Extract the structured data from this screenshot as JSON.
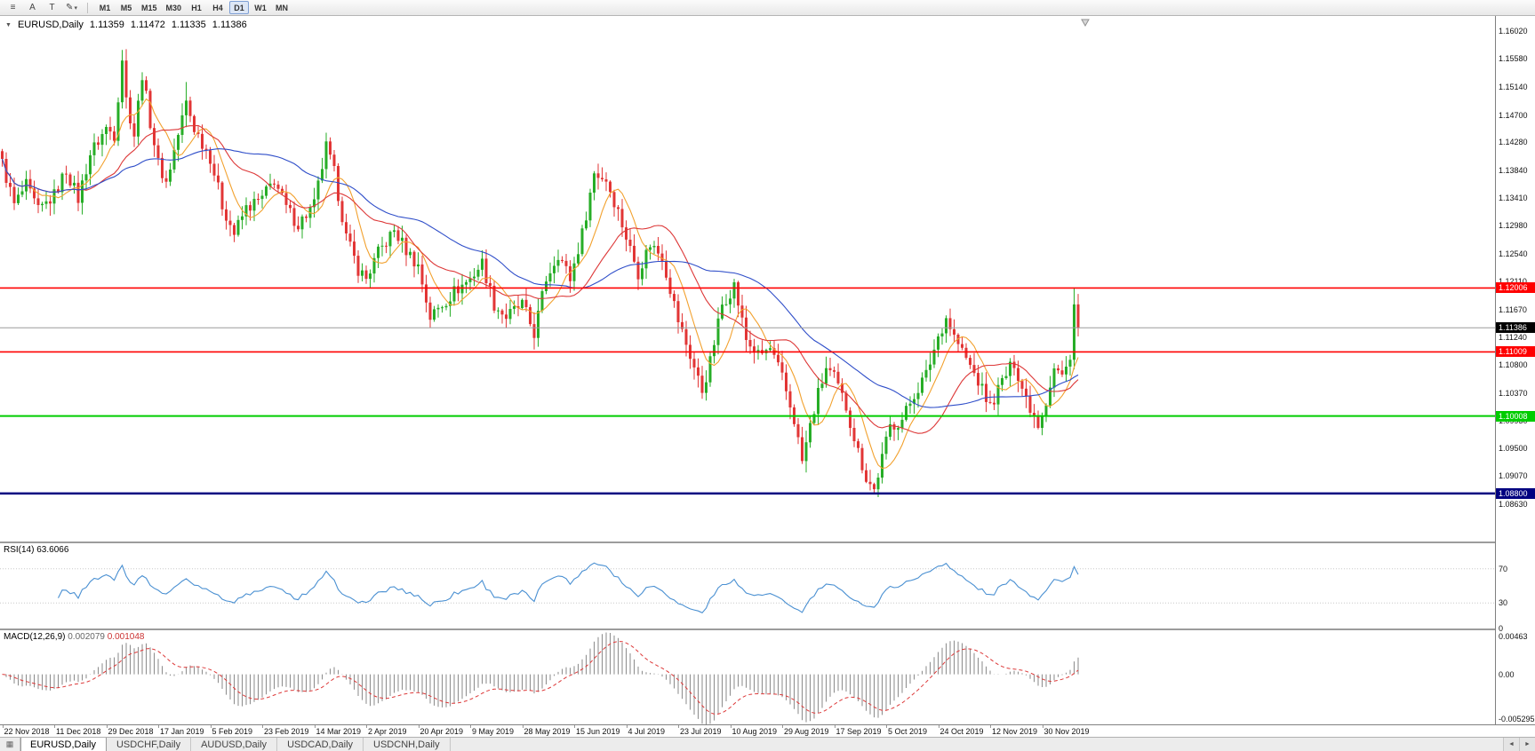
{
  "window": {
    "bg": "#ffffff"
  },
  "toolbar": {
    "icons": {
      "chart_menu": "≡",
      "cursor_tool": "A",
      "crosshair_tool": "T",
      "draw_tools": "✎",
      "caret_down": "▾",
      "title_marker": "▼",
      "scroll_left": "◄",
      "scroll_right": "►",
      "tab_grid": "▦"
    },
    "timeframes": [
      "M1",
      "M5",
      "M15",
      "M30",
      "H1",
      "H4",
      "D1",
      "W1",
      "MN"
    ],
    "active_timeframe": "D1"
  },
  "chart": {
    "title": {
      "symbol_label": "EURUSD,Daily",
      "open": "1.11359",
      "high": "1.11472",
      "low": "1.11335",
      "close": "1.11386"
    }
  },
  "price_axis": {
    "ticks": [
      "1.16020",
      "1.15580",
      "1.15140",
      "1.14700",
      "1.14280",
      "1.13840",
      "1.13410",
      "1.12980",
      "1.12540",
      "1.12110",
      "1.11670",
      "1.11240",
      "1.10800",
      "1.10370",
      "1.09930",
      "1.09500",
      "1.09070",
      "1.08630"
    ],
    "current_price": "1.11386"
  },
  "indicators": {
    "rsi": {
      "name": "RSI(14)",
      "value": "63.6066",
      "levels": [
        "70",
        "30",
        "0"
      ]
    },
    "macd": {
      "name": "MACD(12,26,9)",
      "main_value": "0.002079",
      "signal_value": "0.001048",
      "axis": [
        "0.00463",
        "0.00",
        "-0.005295"
      ]
    }
  },
  "date_axis": [
    "22 Nov 2018",
    "11 Dec 2018",
    "29 Dec 2018",
    "17 Jan 2019",
    "5 Feb 2019",
    "23 Feb 2019",
    "14 Mar 2019",
    "2 Apr 2019",
    "20 Apr 2019",
    "9 May 2019",
    "28 May 2019",
    "15 Jun 2019",
    "4 Jul 2019",
    "23 Jul 2019",
    "10 Aug 2019",
    "29 Aug 2019",
    "17 Sep 2019",
    "5 Oct 2019",
    "24 Oct 2019",
    "12 Nov 2019",
    "30 Nov 2019"
  ],
  "tabs": [
    {
      "label": "EURUSD,Daily",
      "active": true
    },
    {
      "label": "USDCHF,Daily",
      "active": false
    },
    {
      "label": "AUDUSD,Daily",
      "active": false
    },
    {
      "label": "USDCAD,Daily",
      "active": false
    },
    {
      "label": "USDCNH,Daily",
      "active": false
    }
  ],
  "chart_data": {
    "type": "candlestick",
    "symbol": "EURUSD",
    "period": "Daily",
    "ohlc_current": {
      "open": 1.11359,
      "high": 1.11472,
      "low": 1.11335,
      "close": 1.11386
    },
    "num_candles": 270,
    "x_step": 4.5,
    "y_range": [
      1.0805,
      1.1625
    ],
    "last_close": 1.11386,
    "current_price": 1.11386,
    "colors": {
      "up": "#27ad27",
      "down": "#e23535",
      "bid_line": "#9c9c9c",
      "rsi": "#4a90d2",
      "macd_hist": "#8a8a8a",
      "macd_signal": "#dd3838"
    },
    "moving_averages": [
      {
        "period": 8,
        "color": "#f2a12e"
      },
      {
        "period": 21,
        "color": "#dd3838"
      },
      {
        "period": 45,
        "color": "#2f4ec9"
      }
    ],
    "hlines": [
      {
        "price": 1.12006,
        "label": "1.12006",
        "color": "#ff0000",
        "width": 1.6
      },
      {
        "price": 1.11009,
        "label": "1.11009",
        "color": "#ff0000",
        "width": 1.6
      },
      {
        "price": 1.10008,
        "label": "1.10008",
        "color": "#00cc00",
        "width": 2
      },
      {
        "price": 1.088,
        "label": "1.08800",
        "color": "#000080",
        "width": 2.5
      }
    ],
    "rsi": {
      "period": 14,
      "value": 63.6066,
      "levels": [
        70,
        30
      ]
    },
    "macd": {
      "fast": 12,
      "slow": 26,
      "signal": 9,
      "range": [
        -0.0054,
        0.00475
      ],
      "main": 0.002079,
      "signal_value": 0.001048
    },
    "anchors": [
      [
        0,
        1.1395
      ],
      [
        3,
        1.133
      ],
      [
        6,
        1.136
      ],
      [
        9,
        1.132
      ],
      [
        13,
        1.1345
      ],
      [
        16,
        1.1385
      ],
      [
        19,
        1.134
      ],
      [
        22,
        1.141
      ],
      [
        26,
        1.145
      ],
      [
        28,
        1.144
      ],
      [
        30,
        1.156
      ],
      [
        31,
        1.1495
      ],
      [
        33,
        1.144
      ],
      [
        35,
        1.1535
      ],
      [
        37,
        1.146
      ],
      [
        39,
        1.1395
      ],
      [
        41,
        1.1365
      ],
      [
        44,
        1.144
      ],
      [
        46,
        1.149
      ],
      [
        48,
        1.145
      ],
      [
        52,
        1.1405
      ],
      [
        55,
        1.133
      ],
      [
        58,
        1.1285
      ],
      [
        61,
        1.1325
      ],
      [
        65,
        1.134
      ],
      [
        68,
        1.137
      ],
      [
        71,
        1.1325
      ],
      [
        74,
        1.13
      ],
      [
        78,
        1.133
      ],
      [
        81,
        1.142
      ],
      [
        83,
        1.138
      ],
      [
        86,
        1.128
      ],
      [
        89,
        1.123
      ],
      [
        91,
        1.1215
      ],
      [
        94,
        1.1255
      ],
      [
        98,
        1.129
      ],
      [
        101,
        1.126
      ],
      [
        104,
        1.1235
      ],
      [
        107,
        1.1155
      ],
      [
        110,
        1.1175
      ],
      [
        113,
        1.1195
      ],
      [
        117,
        1.1215
      ],
      [
        120,
        1.124
      ],
      [
        123,
        1.1175
      ],
      [
        126,
        1.1155
      ],
      [
        130,
        1.1175
      ],
      [
        133,
        1.113
      ],
      [
        136,
        1.1215
      ],
      [
        139,
        1.1255
      ],
      [
        142,
        1.1215
      ],
      [
        145,
        1.1285
      ],
      [
        148,
        1.138
      ],
      [
        151,
        1.137
      ],
      [
        154,
        1.132
      ],
      [
        156,
        1.128
      ],
      [
        159,
        1.1225
      ],
      [
        162,
        1.127
      ],
      [
        165,
        1.125
      ],
      [
        169,
        1.115
      ],
      [
        172,
        1.1095
      ],
      [
        175,
        1.104
      ],
      [
        177,
        1.1085
      ],
      [
        180,
        1.1175
      ],
      [
        183,
        1.1205
      ],
      [
        186,
        1.112
      ],
      [
        189,
        1.1095
      ],
      [
        192,
        1.1105
      ],
      [
        195,
        1.106
      ],
      [
        198,
        1.0995
      ],
      [
        200,
        1.093
      ],
      [
        202,
        1.0985
      ],
      [
        204,
        1.1035
      ],
      [
        206,
        1.1075
      ],
      [
        208,
        1.106
      ],
      [
        211,
        1.1015
      ],
      [
        214,
        1.0945
      ],
      [
        216,
        1.0905
      ],
      [
        218,
        1.0885
      ],
      [
        220,
        1.0935
      ],
      [
        222,
        1.0985
      ],
      [
        225,
        1.0995
      ],
      [
        228,
        1.1035
      ],
      [
        231,
        1.1065
      ],
      [
        234,
        1.1125
      ],
      [
        236,
        1.1155
      ],
      [
        238,
        1.1125
      ],
      [
        241,
        1.109
      ],
      [
        244,
        1.1055
      ],
      [
        247,
        1.1015
      ],
      [
        250,
        1.1055
      ],
      [
        253,
        1.1085
      ],
      [
        255,
        1.1045
      ],
      [
        257,
        1.1015
      ],
      [
        259,
        1.099
      ],
      [
        261,
        1.1025
      ],
      [
        263,
        1.1075
      ],
      [
        265,
        1.1065
      ],
      [
        267,
        1.109
      ],
      [
        268,
        1.1175
      ],
      [
        269,
        1.1139
      ]
    ],
    "wick_overrides": [
      [
        30,
        "h",
        1.1572
      ],
      [
        46,
        "h",
        1.1522
      ],
      [
        176,
        "l",
        1.1025
      ],
      [
        200,
        "l",
        1.0926
      ],
      [
        218,
        "l",
        1.0879
      ],
      [
        268,
        "h",
        1.1201
      ]
    ]
  }
}
